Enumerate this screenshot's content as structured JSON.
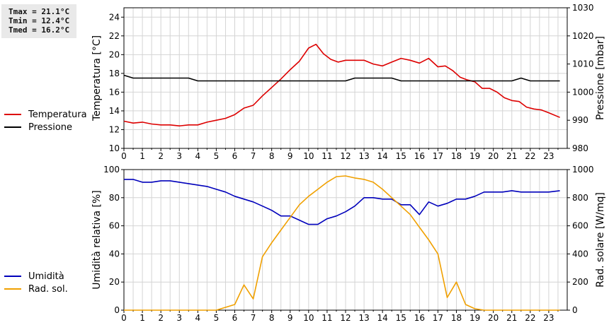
{
  "stats": {
    "tmax": "Tmax = 21.1°C",
    "tmin": "Tmin = 12.4°C",
    "tmed": "Tmed = 16.2°C"
  },
  "colors": {
    "temperature": "#dd0000",
    "pressure": "#000000",
    "humidity": "#0000bb",
    "radiation": "#f0a000",
    "grid": "#d4d4d4"
  },
  "chart_data": [
    {
      "type": "line",
      "x_ticks": [
        "0",
        "1",
        "2",
        "3",
        "4",
        "5",
        "6",
        "7",
        "8",
        "9",
        "10",
        "11",
        "12",
        "13",
        "14",
        "15",
        "16",
        "17",
        "18",
        "19",
        "20",
        "21",
        "22",
        "23"
      ],
      "x_range": [
        0,
        24
      ],
      "ylabel": "Temperatura [°C]",
      "y2label": "Pressione [mbar]",
      "ylim": [
        10,
        25
      ],
      "y_ticks": [
        10,
        12,
        14,
        16,
        18,
        20,
        22,
        24
      ],
      "y2lim": [
        980,
        1030
      ],
      "y2_ticks": [
        980,
        990,
        1000,
        1010,
        1020,
        1030
      ],
      "grid": true,
      "legend": "left-outside",
      "series": [
        {
          "name": "Temperatura",
          "axis": "left",
          "x": [
            0,
            0.5,
            1,
            1.5,
            2,
            2.5,
            3,
            3.5,
            4,
            4.5,
            5,
            5.5,
            6,
            6.5,
            7,
            7.5,
            8,
            8.5,
            9,
            9.5,
            10,
            10.4,
            10.8,
            11.2,
            11.6,
            12,
            12.5,
            13,
            13.5,
            14,
            14.5,
            15,
            15.5,
            16,
            16.5,
            17,
            17.4,
            17.8,
            18.2,
            18.6,
            19,
            19.4,
            19.8,
            20.2,
            20.6,
            21,
            21.4,
            21.8,
            22.2,
            22.6,
            23,
            23.6
          ],
          "values": [
            12.9,
            12.7,
            12.8,
            12.6,
            12.5,
            12.5,
            12.4,
            12.5,
            12.5,
            12.8,
            13.0,
            13.2,
            13.6,
            14.3,
            14.6,
            15.6,
            16.5,
            17.4,
            18.4,
            19.3,
            20.7,
            21.1,
            20.1,
            19.5,
            19.2,
            19.4,
            19.4,
            19.4,
            19.0,
            18.8,
            19.2,
            19.6,
            19.4,
            19.1,
            19.6,
            18.7,
            18.8,
            18.3,
            17.6,
            17.3,
            17.1,
            16.4,
            16.4,
            16.0,
            15.4,
            15.1,
            15.0,
            14.4,
            14.2,
            14.1,
            13.8,
            13.3
          ]
        },
        {
          "name": "Pressione",
          "axis": "right",
          "x": [
            0,
            0.5,
            1,
            2,
            3,
            3.5,
            4,
            5,
            6,
            7,
            8,
            9,
            10,
            11,
            12,
            12.5,
            13,
            14,
            14.5,
            15,
            16,
            17,
            18,
            19,
            20,
            21,
            21.5,
            22,
            23,
            23.6
          ],
          "values": [
            1006,
            1005,
            1005,
            1005,
            1005,
            1005,
            1004,
            1004,
            1004,
            1004,
            1004,
            1004,
            1004,
            1004,
            1004,
            1005,
            1005,
            1005,
            1005,
            1004,
            1004,
            1004,
            1004,
            1004,
            1004,
            1004,
            1005,
            1004,
            1004,
            1004
          ]
        }
      ]
    },
    {
      "type": "line",
      "x_ticks": [
        "0",
        "1",
        "2",
        "3",
        "4",
        "5",
        "6",
        "7",
        "8",
        "9",
        "10",
        "11",
        "12",
        "13",
        "14",
        "15",
        "16",
        "17",
        "18",
        "19",
        "20",
        "21",
        "22",
        "23"
      ],
      "x_range": [
        0,
        24
      ],
      "ylabel": "Umidità relativa [%]",
      "y2label": "Rad. solare [W/mq]",
      "ylim": [
        0,
        100
      ],
      "y_ticks": [
        0,
        20,
        40,
        60,
        80,
        100
      ],
      "y2lim": [
        0,
        1000
      ],
      "y2_ticks": [
        0,
        200,
        400,
        600,
        800,
        1000
      ],
      "grid": true,
      "legend": "left-outside",
      "series": [
        {
          "name": "Umidità",
          "axis": "left",
          "x": [
            0,
            0.5,
            1,
            1.5,
            2,
            2.5,
            3,
            3.5,
            4,
            4.5,
            5,
            5.5,
            6,
            6.5,
            7,
            7.5,
            8,
            8.5,
            9,
            9.5,
            10,
            10.5,
            11,
            11.5,
            12,
            12.5,
            13,
            13.5,
            14,
            14.5,
            15,
            15.5,
            16,
            16.5,
            17,
            17.5,
            18,
            18.5,
            19,
            19.5,
            20,
            20.5,
            21,
            21.5,
            22,
            22.5,
            23,
            23.6
          ],
          "values": [
            93,
            93,
            91,
            91,
            92,
            92,
            91,
            90,
            89,
            88,
            86,
            84,
            81,
            79,
            77,
            74,
            71,
            67,
            67,
            64,
            61,
            61,
            65,
            67,
            70,
            74,
            80,
            80,
            79,
            79,
            75,
            75,
            68,
            77,
            74,
            76,
            79,
            79,
            81,
            84,
            84,
            84,
            85,
            84,
            84,
            84,
            84,
            85
          ]
        },
        {
          "name": "Rad. sol.",
          "axis": "right",
          "x": [
            0,
            1,
            2,
            3,
            4,
            5,
            5.5,
            6,
            6.5,
            7,
            7.5,
            8,
            8.5,
            9,
            9.5,
            10,
            10.5,
            11,
            11.5,
            12,
            12.5,
            13,
            13.5,
            14,
            14.5,
            15,
            15.5,
            16,
            16.5,
            17,
            17.5,
            18,
            18.5,
            19,
            19.5,
            20,
            21,
            22,
            23,
            23.6
          ],
          "values": [
            0,
            0,
            0,
            0,
            0,
            0,
            20,
            40,
            180,
            80,
            380,
            480,
            570,
            660,
            750,
            810,
            860,
            910,
            950,
            955,
            940,
            930,
            910,
            860,
            800,
            740,
            680,
            590,
            500,
            400,
            90,
            200,
            40,
            10,
            0,
            0,
            0,
            0,
            0,
            0
          ]
        }
      ]
    }
  ]
}
